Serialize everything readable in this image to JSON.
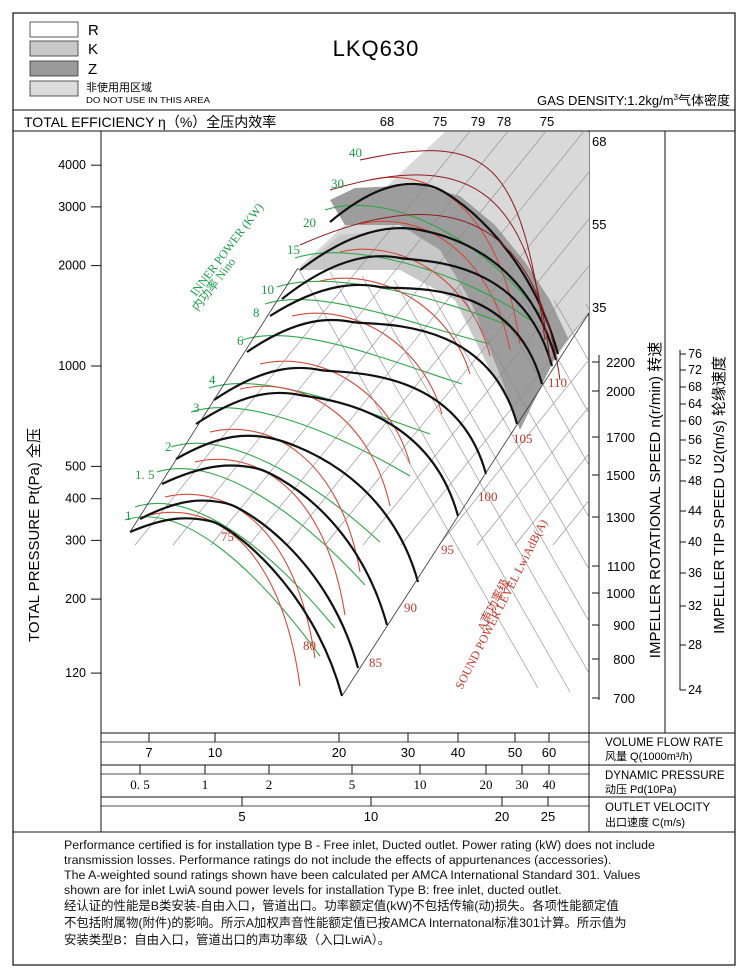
{
  "legend": {
    "items": [
      {
        "label": "R",
        "color": "#ffffff"
      },
      {
        "label": "K",
        "color": "#c9c9c9"
      },
      {
        "label": "Z",
        "color": "#9a9a9a"
      },
      {
        "label": "非使用用区域",
        "sublabel": "DO NOT USE IN THIS AREA",
        "color": "#dcdcdc"
      }
    ]
  },
  "title": "LKQ630",
  "gas_density": {
    "text": "GAS DENSITY:1.2kg/m",
    "sup": "3",
    "cn": "气体密度"
  },
  "efficiency_header": {
    "label": "TOTAL EFFICIENCY η（%）全压内效率",
    "ticks": [
      "68",
      "75",
      "79",
      "78",
      "75"
    ]
  },
  "inner_power_label": {
    "en": "INNER POWER (KW)",
    "cn": "内功率 Nino"
  },
  "sound_label": {
    "en": "SOUND POWER LEVEL LwiAdB(A)",
    "cn": "A声功率级"
  },
  "y_axis_label": "TOTAL PRESSURE Pt(Pa) 全压",
  "rot_axis_label": "IMPELLER ROTATIONAL SPEED n(r/min) 转速",
  "tip_axis_label": "IMPELLER TIP SPEED U2(m/s) 轮缘速度",
  "bottom_scales": {
    "flow": {
      "en": "VOLUME FLOW RATE",
      "cn": "风量 Q(1000m³/h)",
      "ticks": [
        "7",
        "10",
        "20",
        "30",
        "40",
        "50",
        "60"
      ]
    },
    "dyn": {
      "en": "DYNAMIC PRESSURE",
      "cn": "动压 Pd(10Pa)",
      "ticks": [
        "0. 5",
        "1",
        "2",
        "5",
        "10",
        "20",
        "30",
        "40"
      ]
    },
    "vel": {
      "en": "OUTLET VELOCITY",
      "cn": "出口速度 C(m/s)",
      "ticks": [
        "5",
        "10",
        "20",
        "25"
      ]
    }
  },
  "notes": {
    "en": [
      "Performance certified is for installation type B - Free inlet, Ducted outlet. Power rating (kW) does not include",
      "transmission losses. Performance ratings do not include the effects of appurtenances (accessories).",
      "The A-weighted sound ratings shown have been calculated per AMCA International Standard 301. Values",
      "shown are for inlet LwiA sound power levels for installation Type B: free inlet, ducted outlet."
    ],
    "cn": [
      "经认证的性能是B类安装-自由入口，管道出口。功率额定值(kW)不包括传输(动)损失。各项性能额定值",
      "不包括附属物(附件)的影响。所示A加权声音性能额定值已按AMCA Internatonal标准301计算。所示值为",
      "安装类型B：自由入口，管道出口的声功率级（入口LwiA）。"
    ]
  },
  "chart_data": {
    "type": "line",
    "title": "LKQ630",
    "xlabel": "VOLUME FLOW RATE 风量 Q(1000m³/h)",
    "ylabel": "TOTAL PRESSURE Pt(Pa) 全压",
    "x_scale": "log",
    "y_scale": "log",
    "xlim": [
      5,
      70
    ],
    "ylim": [
      95,
      5000
    ],
    "x_ticks": [
      7,
      10,
      20,
      30,
      40,
      50,
      60
    ],
    "y_ticks": [
      120,
      200,
      300,
      400,
      500,
      1000,
      2000,
      3000,
      4000
    ],
    "y_tick_labels": [
      "120",
      "200",
      "300",
      "400",
      "500",
      "1000",
      "2000",
      "3000",
      "4000"
    ],
    "fan_speed_curves_rpm": [
      700,
      800,
      900,
      1000,
      1100,
      1300,
      1500,
      1700,
      2000,
      2200
    ],
    "rotational_speed_ticks": [
      "2200",
      "2000",
      "1700",
      "1500",
      "1300",
      "1100",
      "1000",
      "900",
      "800",
      "700"
    ],
    "tip_speed_ticks": [
      "76",
      "72",
      "68",
      "64",
      "60",
      "56",
      "52",
      "48",
      "44",
      "40",
      "36",
      "32",
      "28",
      "24"
    ],
    "upper_speed_ticks": [
      "68",
      "55",
      "35"
    ],
    "inner_power_kw": [
      "1",
      "1. 5",
      "2",
      "3",
      "4",
      "6",
      "8",
      "10",
      "15",
      "20",
      "30",
      "40"
    ],
    "sound_power_dba": [
      "75",
      "80",
      "85",
      "90",
      "95",
      "100",
      "105",
      "110"
    ],
    "efficiency_percent": [
      "68",
      "75",
      "79",
      "78",
      "75"
    ],
    "zones": [
      "R",
      "K",
      "Z",
      "DO NOT USE IN THIS AREA"
    ]
  }
}
